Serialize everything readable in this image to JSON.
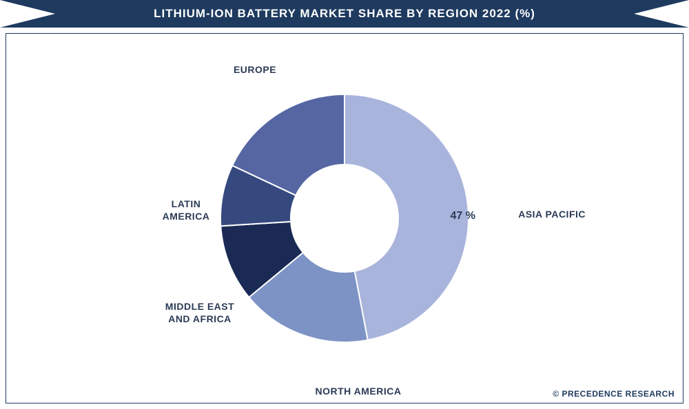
{
  "title": "Lithium-Ion Battery Market Share by Region 2022 (%)",
  "copyright": "© PRECEDENCE RESEARCH",
  "chart": {
    "type": "donut",
    "background_color": "#ffffff",
    "border_color": "#1e3a5f",
    "inner_radius": 78,
    "outer_radius": 180,
    "title_fontsize": 17,
    "label_fontsize": 14,
    "slices": [
      {
        "label": "ASIA PACIFIC",
        "value": 47,
        "color": "#a9b4dc",
        "show_value": true
      },
      {
        "label": "NORTH AMERICA",
        "value": 17,
        "color": "#7d93c5",
        "show_value": false
      },
      {
        "label": "MIDDLE EAST AND AFRICA",
        "value": 10,
        "color": "#1b2a55",
        "show_value": false
      },
      {
        "label": "LATIN AMERICA",
        "value": 8,
        "color": "#35497f",
        "show_value": false
      },
      {
        "label": "EUROPE",
        "value": 18,
        "color": "#5566a3",
        "show_value": false
      }
    ]
  }
}
